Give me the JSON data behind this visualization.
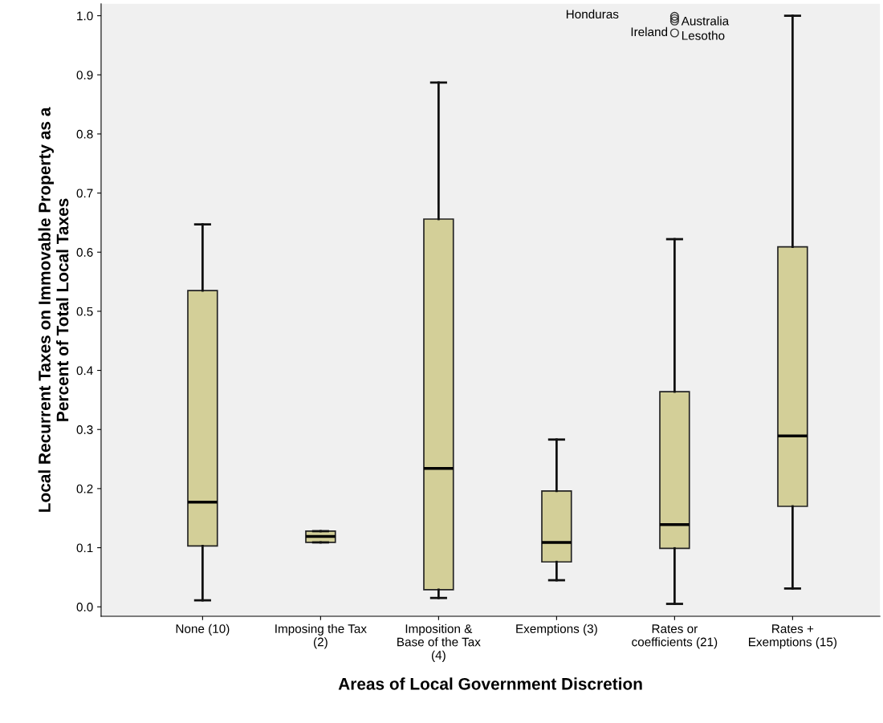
{
  "chart_data": {
    "type": "box",
    "xlabel": "Areas of Local Government Discretion",
    "ylabel": "Local Recurrent Taxes on Immovable Property as a\nPercent of Total Local Taxes",
    "categories": [
      "None (10)",
      "Imposing the Tax\n(2)",
      "Imposition &\nBase of the Tax\n(4)",
      "Exemptions (3)",
      "Rates or\ncoefficients (21)",
      "Rates +\nExemptions (15)"
    ],
    "color": "#d3cf98",
    "boxes": [
      {
        "low": 0.011,
        "q1": 0.103,
        "median": 0.177,
        "q3": 0.535,
        "high": 0.647
      },
      {
        "low": 0.109,
        "q1": 0.109,
        "median": 0.119,
        "q3": 0.128,
        "high": 0.128
      },
      {
        "low": 0.015,
        "q1": 0.029,
        "median": 0.234,
        "q3": 0.656,
        "high": 0.887
      },
      {
        "low": 0.045,
        "q1": 0.076,
        "median": 0.109,
        "q3": 0.196,
        "high": 0.283
      },
      {
        "low": 0.005,
        "q1": 0.099,
        "median": 0.139,
        "q3": 0.364,
        "high": 0.622,
        "outliers": [
          0.999,
          0.995,
          0.991,
          0.971
        ]
      },
      {
        "low": 0.031,
        "q1": 0.17,
        "median": 0.289,
        "q3": 0.609,
        "high": 1.0
      }
    ],
    "annotations": [
      "Honduras",
      "Australia",
      "Lesotho",
      "Ireland"
    ],
    "ylim": [
      -0.016,
      1.02
    ],
    "yticks": [
      {
        "value": 0,
        "label": "0.0"
      },
      {
        "value": 0.1,
        "label": "0.1"
      },
      {
        "value": 0.2,
        "label": "0.2"
      },
      {
        "value": 0.3,
        "label": "0.3"
      },
      {
        "value": 0.4,
        "label": "0.4"
      },
      {
        "value": 0.5,
        "label": "0.5"
      },
      {
        "value": 0.6,
        "label": "0.6"
      },
      {
        "value": 0.7,
        "label": "0.7"
      },
      {
        "value": 0.8,
        "label": "0.8"
      },
      {
        "value": 0.9,
        "label": "0.9"
      },
      {
        "value": 1.0,
        "label": "1.0"
      }
    ],
    "grid": false
  }
}
